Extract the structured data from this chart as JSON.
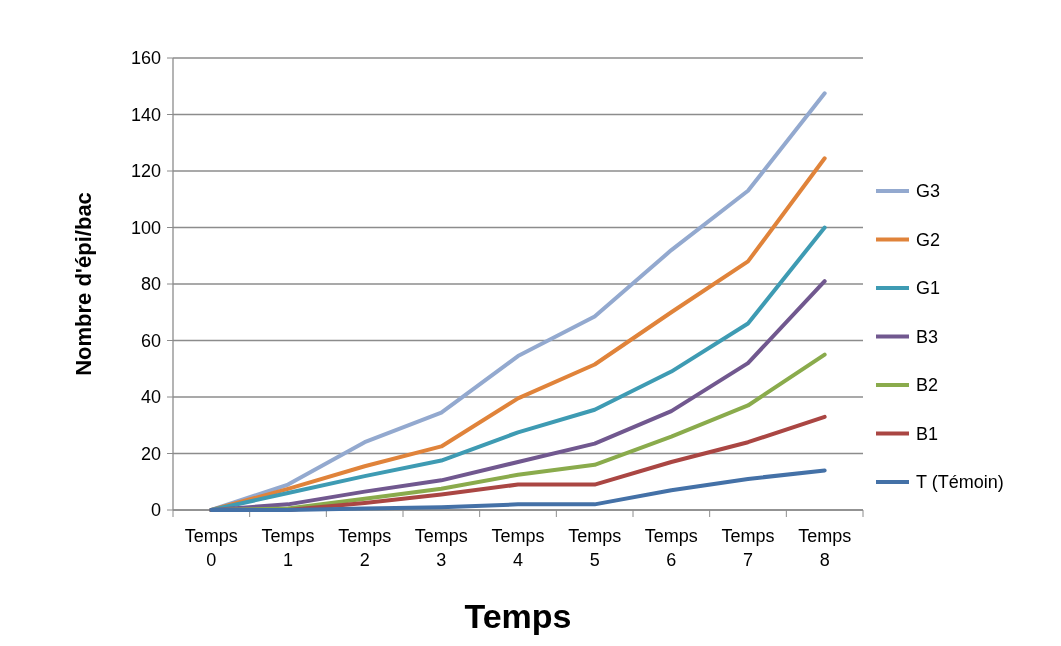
{
  "chart_data": {
    "type": "line",
    "xlabel": "Temps",
    "ylabel": "Nombre d'épi/bac",
    "categories": [
      "Temps 0",
      "Temps 1",
      "Temps 2",
      "Temps 3",
      "Temps 4",
      "Temps 5",
      "Temps 6",
      "Temps 7",
      "Temps 8"
    ],
    "series": [
      {
        "name": "G3",
        "color": "#93a9cf",
        "values": [
          0,
          9,
          24,
          34.5,
          54.5,
          68.5,
          92,
          113,
          147.5
        ]
      },
      {
        "name": "G2",
        "color": "#e0833a",
        "values": [
          0,
          7.5,
          15.5,
          22.5,
          39.5,
          51.5,
          70,
          88,
          124.5
        ]
      },
      {
        "name": "G1",
        "color": "#3e9bb3",
        "values": [
          0,
          6,
          12,
          17.5,
          27.5,
          35.5,
          49,
          66,
          100
        ]
      },
      {
        "name": "B3",
        "color": "#71588f",
        "values": [
          0,
          2,
          6.5,
          10.5,
          17,
          23.5,
          35,
          52,
          81
        ]
      },
      {
        "name": "B2",
        "color": "#8aab4c",
        "values": [
          0,
          0.5,
          4,
          7.5,
          12.5,
          16,
          26,
          37,
          55
        ]
      },
      {
        "name": "B1",
        "color": "#aa4643",
        "values": [
          0,
          0,
          2.5,
          5.5,
          9,
          9,
          17,
          24,
          33
        ]
      },
      {
        "name": "T (Témoin)",
        "color": "#4471a7",
        "values": [
          0,
          0,
          0.5,
          1,
          2,
          2,
          7,
          11,
          14
        ]
      }
    ],
    "ylim": [
      0,
      160
    ],
    "yticks": [
      0,
      20,
      40,
      60,
      80,
      100,
      120,
      140,
      160
    ],
    "grid": "y",
    "legend": "right",
    "marker": "none",
    "line_style": "solid"
  }
}
